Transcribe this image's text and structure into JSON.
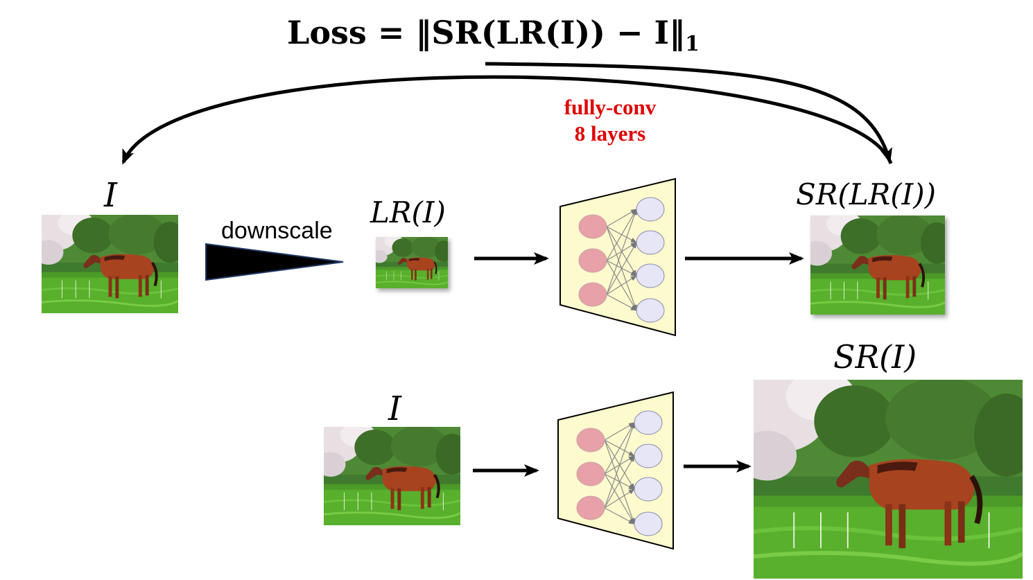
{
  "loss_formula": {
    "prefix": "Loss = ‖SR(LR(I)) − I‖",
    "subscript": "1"
  },
  "network_note": {
    "line1": "fully-conv",
    "line2": "8 layers"
  },
  "top_row": {
    "input_label": "I",
    "downscale_label": "downscale",
    "lr_label": "LR(I)",
    "output_label": "SR(LR(I))"
  },
  "bottom_row": {
    "input_label": "I",
    "output_label": "SR(I)"
  },
  "colors": {
    "net_panel_fill": "#fdfacd",
    "input_node_fill": "#e8a1a8",
    "output_node_fill": "#e6e6f7",
    "note_red": "#e00000",
    "downscale_wedge": "#000000"
  },
  "icons": [
    "horse-photo",
    "downscale-wedge",
    "network-trapezoid",
    "arrow-right-icon",
    "curved-arrow-icon"
  ]
}
